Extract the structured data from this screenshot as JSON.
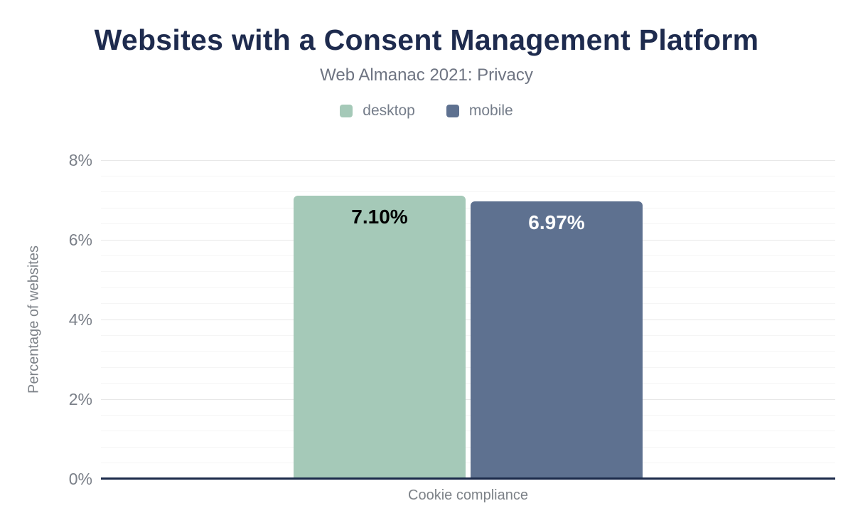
{
  "header": {
    "title": "Websites with a Consent Management Platform",
    "subtitle": "Web Almanac 2021: Privacy"
  },
  "legend": {
    "items": [
      {
        "label": "desktop",
        "color": "#a5c9b8"
      },
      {
        "label": "mobile",
        "color": "#5e7190"
      }
    ]
  },
  "chart_data": {
    "type": "bar",
    "title": "Websites with a Consent Management Platform",
    "subtitle": "Web Almanac 2021: Privacy",
    "categories": [
      "Cookie compliance"
    ],
    "series": [
      {
        "name": "desktop",
        "values": [
          7.1
        ],
        "color": "#a5c9b8",
        "label_color": "#000000",
        "data_labels": [
          "7.10%"
        ]
      },
      {
        "name": "mobile",
        "values": [
          6.97
        ],
        "color": "#5e7190",
        "label_color": "#ffffff",
        "data_labels": [
          "6.97%"
        ]
      }
    ],
    "xlabel": "Cookie compliance",
    "ylabel": "Percentage of websites",
    "ylim": [
      0,
      8
    ],
    "yticks": [
      "0%",
      "2%",
      "4%",
      "6%",
      "8%"
    ],
    "ytick_step_major": 2,
    "ytick_step_minor": 0.4,
    "grid": true,
    "legend_position": "top"
  },
  "colors": {
    "background": "#ffffff",
    "title": "#1e2b4e",
    "subtitle": "#6e7482",
    "legend_text": "#757d8a",
    "tick_label": "#7b8089",
    "axis_title": "#7d8288",
    "gridline_major": "#e8e8e8",
    "gridline_minor": "#f5f5f5",
    "baseline": "#1b2a4a"
  }
}
